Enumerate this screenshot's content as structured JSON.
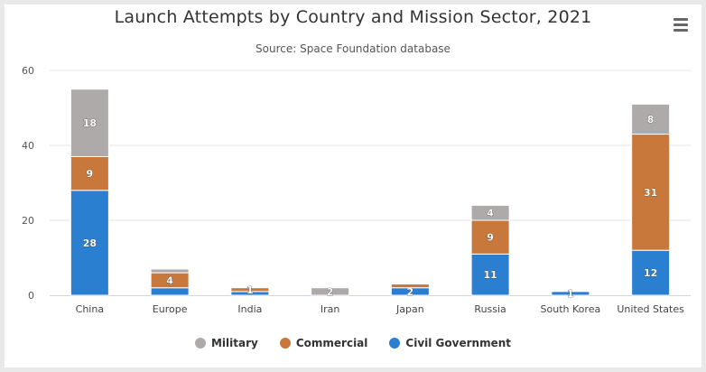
{
  "menu": {
    "icon": "hamburger-menu-icon"
  },
  "chart_data": {
    "type": "bar",
    "stacked": true,
    "title": "Launch Attempts by Country and Mission Sector, 2021",
    "subtitle": "Source: Space Foundation database",
    "xlabel": "",
    "ylabel": "",
    "ylim": [
      0,
      60
    ],
    "yticks": [
      "0",
      "20",
      "40",
      "60"
    ],
    "grid": true,
    "legend_position": "bottom",
    "categories": [
      "China",
      "Europe",
      "India",
      "Iran",
      "Japan",
      "Russia",
      "South Korea",
      "United States"
    ],
    "series": [
      {
        "name": "Civil Government",
        "color": "#2b7fd1",
        "values": [
          28,
          2,
          1,
          0,
          2,
          11,
          1,
          12
        ],
        "labels": [
          "28",
          "",
          "",
          "",
          "2",
          "11",
          "1",
          "12"
        ]
      },
      {
        "name": "Commercial",
        "color": "#c8783a",
        "values": [
          9,
          4,
          1,
          0,
          1,
          9,
          0,
          31
        ],
        "labels": [
          "9",
          "4",
          "1",
          "",
          "",
          "9",
          "",
          "31"
        ]
      },
      {
        "name": "Military",
        "color": "#aeaaaa",
        "values": [
          18,
          1,
          0,
          2,
          0,
          4,
          0,
          8
        ],
        "labels": [
          "18",
          "",
          "",
          "2",
          "",
          "4",
          "",
          "8"
        ]
      }
    ],
    "legend_order": [
      "Military",
      "Commercial",
      "Civil Government"
    ]
  }
}
